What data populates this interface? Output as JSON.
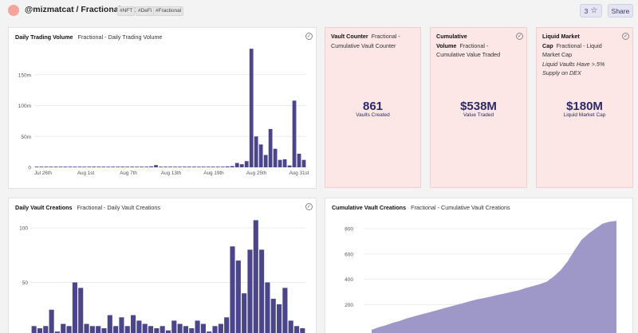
{
  "header": {
    "title": "@mizmatcat / Fractional.Art",
    "tags": [
      "#NFT",
      "#DeFi",
      "#Fractional"
    ],
    "star_count": "3",
    "share_label": "Share"
  },
  "colors": {
    "bar": "#4b4589",
    "area": "#9d98c8",
    "kpi_bg": "#fde6e6",
    "kpi_text": "#2d2a63"
  },
  "volume_panel": {
    "title": "Daily Trading Volume",
    "subtitle": "Fractional - Daily Trading Volume"
  },
  "vault_counter": {
    "title_1": "Vault Counter",
    "title_2": "Fractional -",
    "title_3": "Cumulative Vault Counter",
    "value": "861",
    "label": "Vaults Created"
  },
  "value_traded": {
    "title_1": "Cumulative",
    "title_2": "Volume",
    "title_3": "Fractional -",
    "title_4": "Cumulative Value Traded",
    "value": "$538M",
    "label": "Value Traded"
  },
  "market_cap": {
    "title_1": "Liquid Market",
    "title_2": "Cap",
    "title_3": "Fractional - Liquid",
    "title_4": "Market Cap",
    "note_1": "Liquid Vaults Have >.5%",
    "note_2": "Supply on DEX",
    "value": "$180M",
    "label": "Liquid Market Cap"
  },
  "creations_panel": {
    "title": "Daily Vault Creations",
    "subtitle": "Fractional - Daily Vault Creations"
  },
  "cumulative_panel": {
    "title": "Cumulative Vault Creations",
    "subtitle": "Fractional - Cumulative Vault Creations"
  },
  "chart_data": [
    {
      "type": "bar",
      "title": "Fractional - Daily Trading Volume",
      "x_ticks": [
        "Jul 26th",
        "Aug 1st",
        "Aug 7th",
        "Aug 13th",
        "Aug 19th",
        "Aug 25th",
        "Aug 31st"
      ],
      "y_ticks": [
        "0",
        "50m",
        "100m",
        "150m"
      ],
      "ylim": [
        0,
        200
      ],
      "values": [
        0.3,
        0.2,
        0.2,
        0.4,
        0.3,
        0.5,
        0.3,
        0.3,
        0.2,
        0.3,
        0.8,
        0.3,
        0.2,
        0.4,
        0.3,
        0.2,
        0.4,
        0.3,
        0.2,
        0.3,
        0.6,
        0.4,
        0.3,
        0.3,
        1.5,
        3.5,
        0.8,
        0.4,
        0.3,
        0.2,
        0.2,
        0.3,
        0.2,
        0.2,
        0.3,
        0.2,
        0.2,
        0.2,
        0.4,
        0.3,
        1.5,
        2,
        7,
        5,
        10,
        192,
        50,
        37,
        20,
        62,
        30,
        12,
        13,
        3,
        108,
        22,
        12
      ]
    },
    {
      "type": "bar",
      "title": "Fractional - Daily Vault Creations",
      "y_ticks": [
        "50",
        "100"
      ],
      "values": [
        10,
        8,
        10,
        25,
        5,
        12,
        10,
        50,
        45,
        12,
        10,
        10,
        8,
        20,
        10,
        18,
        10,
        20,
        15,
        12,
        10,
        8,
        10,
        6,
        15,
        12,
        10,
        8,
        15,
        12,
        5,
        10,
        12,
        18,
        83,
        70,
        40,
        80,
        107,
        80,
        50,
        35,
        30,
        45,
        15,
        10,
        8
      ]
    },
    {
      "type": "area",
      "title": "Fractional - Cumulative Vault Creations",
      "y_ticks": [
        "200",
        "400",
        "600",
        "800"
      ],
      "values": [
        0,
        20,
        35,
        55,
        70,
        90,
        105,
        120,
        135,
        150,
        165,
        180,
        195,
        210,
        225,
        240,
        250,
        262,
        275,
        287,
        300,
        312,
        330,
        345,
        360,
        380,
        420,
        470,
        540,
        630,
        710,
        760,
        800,
        840,
        855,
        861
      ]
    }
  ]
}
